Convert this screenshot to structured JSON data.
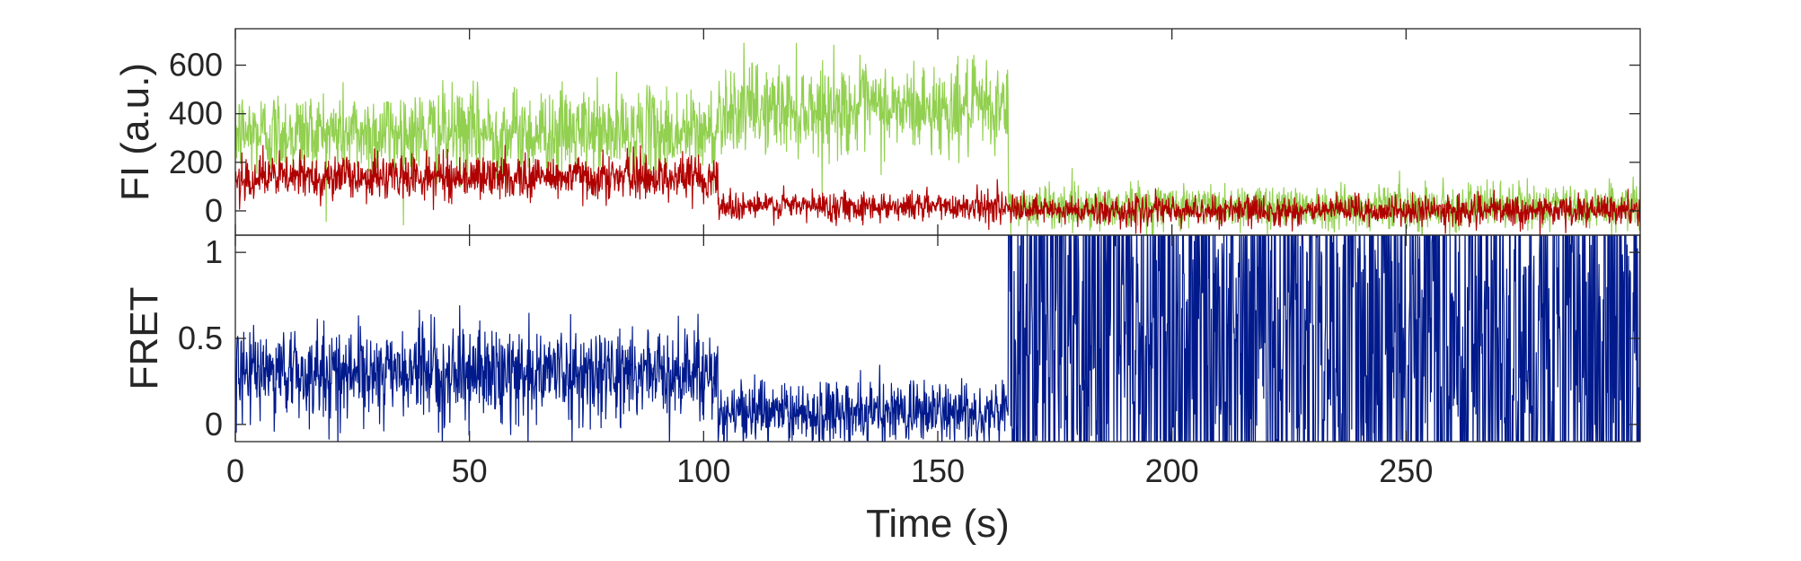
{
  "chart_data": [
    {
      "type": "line",
      "panel": "fluorescence",
      "ylabel": "FI (a.u.)",
      "xlim": [
        0,
        300
      ],
      "ylim": [
        -100,
        750
      ],
      "yticks": [
        0,
        200,
        400,
        600
      ],
      "ytick_labels": [
        "0",
        "200",
        "400",
        "600"
      ],
      "grid": false,
      "series": [
        {
          "color": "#92d050",
          "segments": [
            {
              "from": 0,
              "to": 103,
              "mean": 320,
              "sd": 90
            },
            {
              "from": 103,
              "to": 165,
              "mean": 420,
              "sd": 90
            },
            {
              "from": 165,
              "to": 300,
              "mean": 20,
              "sd": 45
            }
          ]
        },
        {
          "color": "#b00000",
          "segments": [
            {
              "from": 0,
              "to": 103,
              "mean": 140,
              "sd": 45
            },
            {
              "from": 103,
              "to": 165,
              "mean": 20,
              "sd": 30
            },
            {
              "from": 165,
              "to": 300,
              "mean": 0,
              "sd": 30
            }
          ]
        }
      ]
    },
    {
      "type": "line",
      "panel": "fret",
      "ylabel": "FRET",
      "xlabel": "Time (s)",
      "xlim": [
        0,
        300
      ],
      "ylim": [
        -0.1,
        1.1
      ],
      "yticks": [
        0,
        0.5,
        1
      ],
      "ytick_labels": [
        "0",
        "0.5",
        "1"
      ],
      "xticks": [
        0,
        50,
        100,
        150,
        200,
        250
      ],
      "xtick_labels": [
        "0",
        "50",
        "100",
        "150",
        "200",
        "250"
      ],
      "grid": false,
      "series": [
        {
          "color": "#001a8c",
          "segments": [
            {
              "from": 0,
              "to": 103,
              "mean": 0.3,
              "sd": 0.13
            },
            {
              "from": 103,
              "to": 165,
              "mean": 0.07,
              "sd": 0.09
            },
            {
              "from": 165,
              "to": 300,
              "mean": 0.5,
              "sd": 0.9
            }
          ]
        }
      ]
    }
  ]
}
